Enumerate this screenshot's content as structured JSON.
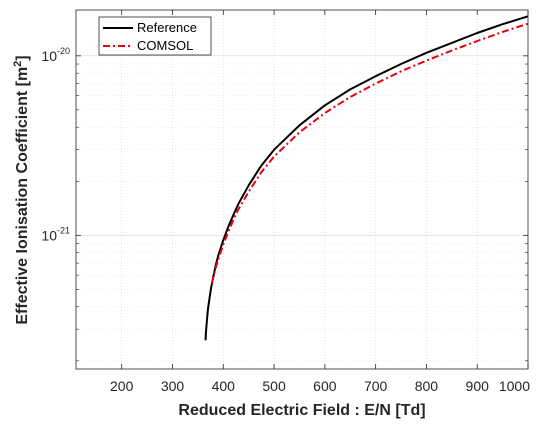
{
  "chart_data": {
    "type": "line",
    "title": "",
    "xlabel": "Reduced Electric Field : E/N [Td]",
    "ylabel": "Effective Ionisation Coefficient [m",
    "ylabel_exp": "2",
    "ylabel_suffix": "]",
    "xlim": [
      110,
      1000
    ],
    "ylim": [
      1.8e-22,
      1.8e-20
    ],
    "yscale": "log",
    "grid": true,
    "legend_position": "top-left",
    "x_ticks": [
      200,
      300,
      400,
      500,
      600,
      700,
      800,
      900,
      1000
    ],
    "x_tick_labels": [
      "200",
      "300",
      "400",
      "500",
      "600",
      "700",
      "800",
      "900",
      "1000"
    ],
    "y_ticks": [
      {
        "value": 1e-21,
        "base": "10",
        "exp": "-21"
      },
      {
        "value": 1e-20,
        "base": "10",
        "exp": "-20"
      }
    ],
    "series": [
      {
        "name": "Reference",
        "color": "#000000",
        "style": "solid",
        "x": [
          365,
          366,
          368,
          370,
          373,
          376,
          380,
          385,
          390,
          400,
          410,
          420,
          430,
          450,
          475,
          500,
          550,
          600,
          650,
          700,
          750,
          800,
          850,
          900,
          950,
          1000
        ],
        "y": [
          2.6e-22,
          2.9e-22,
          3.4e-22,
          3.9e-22,
          4.5e-22,
          5.1e-22,
          5.8e-22,
          6.8e-22,
          7.7e-22,
          9.4e-22,
          1.12e-21,
          1.3e-21,
          1.5e-21,
          1.9e-21,
          2.45e-21,
          3e-21,
          4.1e-21,
          5.3e-21,
          6.5e-21,
          7.7e-21,
          9e-21,
          1.04e-20,
          1.18e-20,
          1.34e-20,
          1.5e-20,
          1.66e-20
        ]
      },
      {
        "name": "COMSOL",
        "color": "#e8000b",
        "style": "dashdot",
        "x": [
          378,
          380,
          385,
          390,
          400,
          410,
          420,
          430,
          450,
          475,
          500,
          550,
          600,
          650,
          700,
          750,
          800,
          850,
          900,
          950,
          1000
        ],
        "y": [
          5.4e-22,
          5.8e-22,
          6.6e-22,
          7.3e-22,
          8.9e-22,
          1.05e-21,
          1.22e-21,
          1.4e-21,
          1.75e-21,
          2.25e-21,
          2.75e-21,
          3.75e-21,
          4.8e-21,
          5.9e-21,
          7e-21,
          8.2e-21,
          9.4e-21,
          1.07e-20,
          1.21e-20,
          1.36e-20,
          1.51e-20
        ]
      }
    ]
  }
}
